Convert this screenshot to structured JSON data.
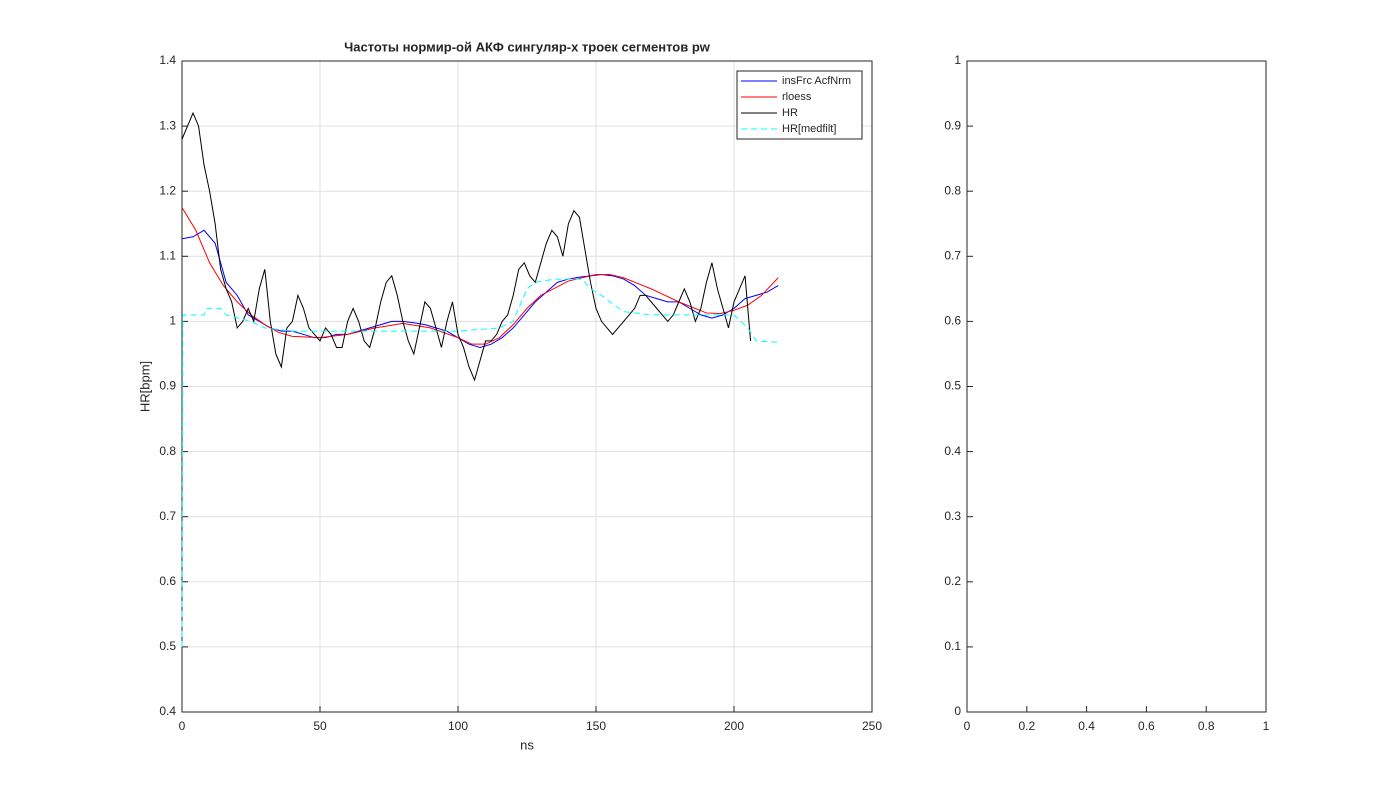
{
  "chart_data": [
    {
      "type": "line",
      "title": "Частоты нормир-ой АКФ сингуляр-х троек сегментов pw",
      "xlabel": "ns",
      "ylabel": "HR[bpm]",
      "xlim": [
        0,
        250
      ],
      "xticks": [
        0,
        50,
        100,
        150,
        200,
        250
      ],
      "ylim": [
        0.4,
        1.4
      ],
      "yticks": [
        0.4,
        0.5,
        0.6,
        0.7,
        0.8,
        0.9,
        1,
        1.1,
        1.2,
        1.3,
        1.4
      ],
      "grid": true,
      "legend": "northeast",
      "series": [
        {
          "name": "insFrc AcfNrm",
          "color": "#0000ff",
          "linestyle": "-",
          "x": [
            0,
            4,
            8,
            12,
            16,
            20,
            24,
            28,
            32,
            36,
            40,
            44,
            48,
            52,
            56,
            60,
            64,
            68,
            72,
            76,
            80,
            84,
            88,
            92,
            96,
            100,
            104,
            108,
            112,
            116,
            120,
            124,
            128,
            132,
            136,
            140,
            144,
            148,
            152,
            156,
            160,
            164,
            168,
            172,
            176,
            180,
            184,
            188,
            192,
            196,
            200,
            204,
            208,
            212,
            216
          ],
          "values": [
            1.127,
            1.13,
            1.14,
            1.12,
            1.06,
            1.04,
            1.01,
            1.0,
            0.99,
            0.985,
            0.985,
            0.98,
            0.975,
            0.975,
            0.98,
            0.98,
            0.985,
            0.99,
            0.995,
            1.0,
            1.0,
            0.998,
            0.995,
            0.99,
            0.985,
            0.975,
            0.965,
            0.96,
            0.965,
            0.975,
            0.99,
            1.01,
            1.03,
            1.045,
            1.06,
            1.065,
            1.068,
            1.07,
            1.072,
            1.07,
            1.065,
            1.055,
            1.04,
            1.035,
            1.03,
            1.03,
            1.02,
            1.01,
            1.005,
            1.01,
            1.02,
            1.035,
            1.04,
            1.045,
            1.055
          ]
        },
        {
          "name": "rloess",
          "color": "#ff0000",
          "linestyle": "-",
          "x": [
            0,
            5,
            10,
            15,
            20,
            25,
            30,
            35,
            40,
            50,
            60,
            70,
            80,
            90,
            100,
            105,
            110,
            115,
            120,
            125,
            130,
            140,
            150,
            155,
            160,
            170,
            180,
            190,
            195,
            200,
            205,
            210,
            216
          ],
          "values": [
            1.175,
            1.14,
            1.09,
            1.055,
            1.03,
            1.01,
            0.995,
            0.983,
            0.977,
            0.975,
            0.98,
            0.99,
            0.997,
            0.99,
            0.975,
            0.965,
            0.965,
            0.975,
            0.995,
            1.02,
            1.04,
            1.062,
            1.072,
            1.072,
            1.067,
            1.05,
            1.03,
            1.013,
            1.012,
            1.017,
            1.025,
            1.04,
            1.067
          ]
        },
        {
          "name": "HR",
          "color": "#000000",
          "linestyle": "-",
          "x": [
            0,
            2,
            4,
            6,
            8,
            10,
            12,
            14,
            16,
            18,
            20,
            22,
            24,
            26,
            28,
            30,
            32,
            34,
            36,
            38,
            40,
            42,
            44,
            46,
            48,
            50,
            52,
            54,
            56,
            58,
            60,
            62,
            64,
            66,
            68,
            70,
            72,
            74,
            76,
            78,
            80,
            82,
            84,
            86,
            88,
            90,
            92,
            94,
            96,
            98,
            100,
            102,
            104,
            106,
            108,
            110,
            112,
            114,
            116,
            118,
            120,
            122,
            124,
            126,
            128,
            130,
            132,
            134,
            136,
            138,
            140,
            142,
            144,
            146,
            148,
            150,
            152,
            154,
            156,
            158,
            160,
            162,
            164,
            166,
            168,
            170,
            172,
            174,
            176,
            178,
            180,
            182,
            184,
            186,
            188,
            190,
            192,
            194,
            196,
            198,
            200,
            202,
            204,
            206
          ],
          "values": [
            1.28,
            1.3,
            1.32,
            1.3,
            1.24,
            1.2,
            1.15,
            1.08,
            1.05,
            1.03,
            0.99,
            1.0,
            1.02,
            1.0,
            1.05,
            1.08,
            1.0,
            0.95,
            0.93,
            0.99,
            1.0,
            1.04,
            1.02,
            0.99,
            0.98,
            0.97,
            0.99,
            0.98,
            0.96,
            0.96,
            1.0,
            1.02,
            1.0,
            0.97,
            0.96,
            0.99,
            1.03,
            1.06,
            1.07,
            1.04,
            1.0,
            0.97,
            0.95,
            0.99,
            1.03,
            1.02,
            0.99,
            0.96,
            1.0,
            1.03,
            0.98,
            0.96,
            0.93,
            0.91,
            0.94,
            0.97,
            0.97,
            0.98,
            1.0,
            1.01,
            1.04,
            1.08,
            1.09,
            1.07,
            1.06,
            1.09,
            1.12,
            1.14,
            1.13,
            1.1,
            1.15,
            1.17,
            1.16,
            1.11,
            1.06,
            1.02,
            1.0,
            0.99,
            0.98,
            0.99,
            1.0,
            1.01,
            1.02,
            1.04,
            1.04,
            1.03,
            1.02,
            1.01,
            1.0,
            1.01,
            1.03,
            1.05,
            1.03,
            1.0,
            1.02,
            1.06,
            1.09,
            1.05,
            1.02,
            0.99,
            1.03,
            1.05,
            1.07,
            0.97
          ]
        },
        {
          "name": "HR[medfilt]",
          "color": "#00ffff",
          "linestyle": "--",
          "x": [
            0,
            0.3,
            8,
            9,
            14,
            16,
            25,
            30,
            40,
            60,
            80,
            100,
            115,
            120,
            123,
            125,
            128,
            135,
            145,
            148,
            152,
            155,
            160,
            170,
            180,
            190,
            200,
            205,
            208,
            216
          ],
          "values": [
            0.5,
            1.01,
            1.01,
            1.02,
            1.02,
            1.01,
            1.0,
            0.99,
            0.985,
            0.985,
            0.985,
            0.985,
            0.99,
            1.0,
            1.03,
            1.05,
            1.06,
            1.065,
            1.065,
            1.05,
            1.04,
            1.03,
            1.015,
            1.01,
            1.01,
            1.01,
            1.01,
            0.99,
            0.97,
            0.968
          ]
        }
      ]
    },
    {
      "type": "line",
      "xlim": [
        0,
        1
      ],
      "xticks": [
        0,
        0.2,
        0.4,
        0.6,
        0.8,
        1
      ],
      "ylim": [
        0,
        1
      ],
      "yticks": [
        0,
        0.1,
        0.2,
        0.3,
        0.4,
        0.5,
        0.6,
        0.7,
        0.8,
        0.9,
        1
      ],
      "grid": false,
      "series": []
    }
  ]
}
